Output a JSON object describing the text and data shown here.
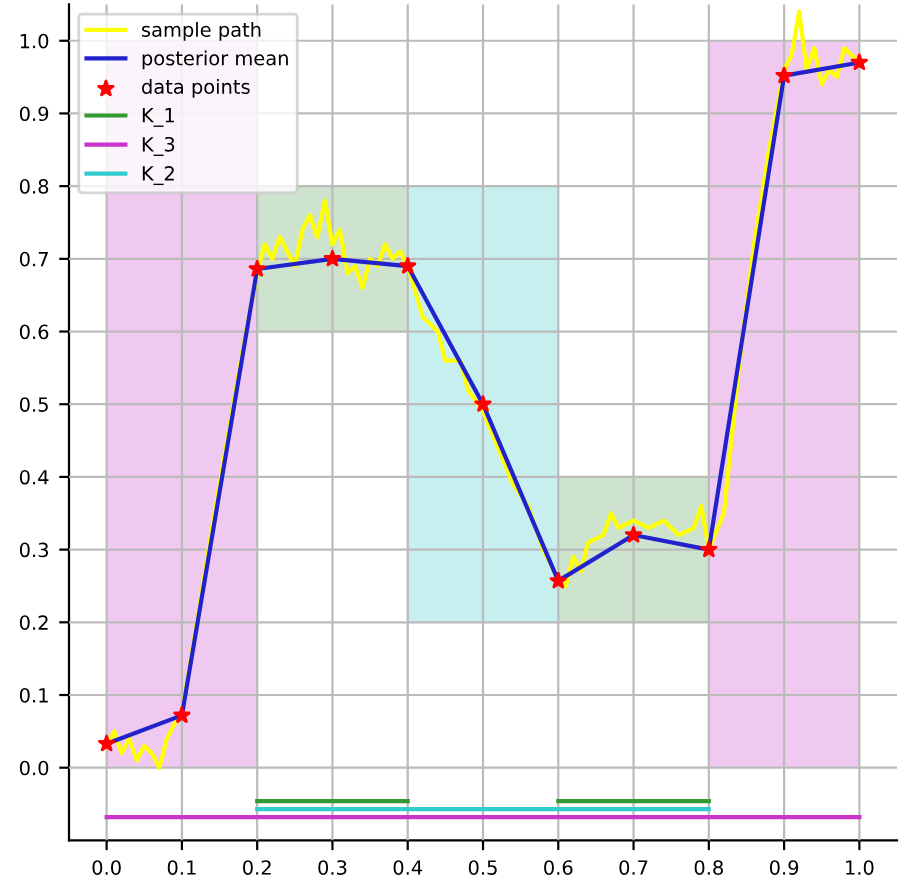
{
  "chart_data": {
    "type": "line",
    "xlim": [
      -0.05,
      1.05
    ],
    "ylim": [
      -0.1,
      1.05
    ],
    "xticks": [
      {
        "value": 0,
        "label": "0.0"
      },
      0.1,
      0.2,
      0.3,
      0.4,
      0.5,
      0.6,
      0.7,
      0.8,
      0.9,
      {
        "value": 1,
        "label": "1.0"
      }
    ],
    "yticks": [
      {
        "value": 0,
        "label": "0.0"
      },
      0.1,
      0.2,
      0.3,
      0.4,
      0.5,
      0.6,
      0.7,
      0.8,
      0.9,
      {
        "value": 1,
        "label": "1.0"
      }
    ],
    "grid": true,
    "legend": "top left",
    "series": [
      {
        "type": "bar",
        "colors": [
          "#efc9ef",
          "#cde3cd",
          "#c8efef",
          "#cde3cd",
          "#efc9ef"
        ],
        "x": [
          0.1,
          0.3,
          0.5,
          0.7,
          0.9
        ],
        "base": [
          0.0,
          0.6,
          0.2,
          0.2,
          0.0
        ],
        "values": [
          1.0,
          0.2,
          0.6,
          0.2,
          1.0
        ]
      },
      {
        "name": "sample path",
        "color": "#ffff00",
        "marker": "none",
        "x": [
          0,
          0.01,
          0.02,
          0.03,
          0.04,
          0.05,
          0.06,
          0.07,
          0.08,
          0.09,
          0.1,
          0.12,
          0.14,
          0.16,
          0.18,
          0.2,
          0.21,
          0.22,
          0.23,
          0.24,
          0.25,
          0.26,
          0.27,
          0.28,
          0.29,
          0.3,
          0.31,
          0.32,
          0.33,
          0.34,
          0.35,
          0.36,
          0.37,
          0.38,
          0.39,
          0.4,
          0.42,
          0.44,
          0.45,
          0.47,
          0.48,
          0.5,
          0.52,
          0.54,
          0.56,
          0.58,
          0.6,
          0.61,
          0.62,
          0.63,
          0.64,
          0.66,
          0.67,
          0.68,
          0.7,
          0.72,
          0.74,
          0.76,
          0.78,
          0.79,
          0.8,
          0.82,
          0.84,
          0.86,
          0.88,
          0.9,
          0.91,
          0.92,
          0.93,
          0.94,
          0.95,
          0.96,
          0.97,
          0.98,
          1.0
        ],
        "values": [
          0.03,
          0.05,
          0.02,
          0.04,
          0.01,
          0.03,
          0.02,
          0.0,
          0.04,
          0.06,
          0.075,
          0.2,
          0.33,
          0.45,
          0.57,
          0.68,
          0.72,
          0.7,
          0.73,
          0.71,
          0.69,
          0.74,
          0.76,
          0.73,
          0.78,
          0.72,
          0.74,
          0.68,
          0.69,
          0.66,
          0.7,
          0.69,
          0.72,
          0.7,
          0.71,
          0.69,
          0.62,
          0.6,
          0.56,
          0.56,
          0.52,
          0.49,
          0.44,
          0.39,
          0.36,
          0.3,
          0.26,
          0.25,
          0.29,
          0.27,
          0.31,
          0.32,
          0.35,
          0.33,
          0.34,
          0.33,
          0.34,
          0.32,
          0.33,
          0.36,
          0.3,
          0.35,
          0.55,
          0.72,
          0.85,
          0.96,
          0.98,
          1.04,
          0.96,
          0.99,
          0.94,
          0.96,
          0.95,
          0.99,
          0.97
        ]
      },
      {
        "name": "posterior mean",
        "color": "#2222cc",
        "marker": "none",
        "x": [
          0,
          0.1,
          0.2,
          0.3,
          0.4,
          0.5,
          0.6,
          0.7,
          0.8,
          0.9,
          1.0
        ],
        "values": [
          0.033,
          0.072,
          0.686,
          0.7,
          0.69,
          0.5,
          0.257,
          0.32,
          0.3,
          0.952,
          0.97
        ]
      },
      {
        "type": "scatter",
        "name": "data points",
        "color": "#ff0000",
        "marker": "star",
        "x": [
          0,
          0.1,
          0.2,
          0.3,
          0.4,
          0.5,
          0.6,
          0.7,
          0.8,
          0.9,
          1.0
        ],
        "values": [
          0.033,
          0.072,
          0.686,
          0.7,
          0.69,
          0.5,
          0.257,
          0.32,
          0.3,
          0.952,
          0.97
        ]
      },
      {
        "name": "K_1",
        "color": "#339933",
        "marker": "none",
        "x": [
          0.2,
          0.4,
          null,
          0.6,
          0.8
        ],
        "values": [
          -0.046,
          -0.046,
          null,
          -0.046,
          -0.046
        ]
      },
      {
        "name": "K_3",
        "color": "#cc33cc",
        "marker": "none",
        "x": [
          0.0,
          1.0
        ],
        "values": [
          -0.068,
          -0.068
        ]
      },
      {
        "name": "K_2",
        "color": "#33cccc",
        "marker": "none",
        "x": [
          0.2,
          0.8
        ],
        "values": [
          -0.057,
          -0.057
        ]
      }
    ]
  }
}
